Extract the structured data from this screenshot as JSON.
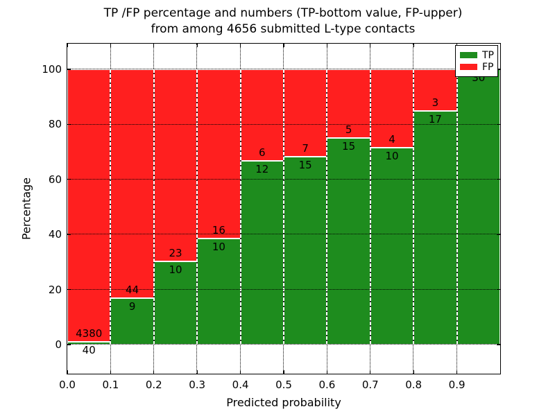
{
  "figure": {
    "title_line1": "TP /FP percentage and numbers (TP-bottom value, FP-upper)",
    "title_line2": "from among 4656 submitted L-type contacts",
    "xlabel": "Predicted probability",
    "ylabel": "Percentage"
  },
  "legend": {
    "position": "upper right",
    "items": [
      {
        "label": "TP",
        "color": "#1E8C1E"
      },
      {
        "label": "FP",
        "color": "#FF1F1F"
      }
    ]
  },
  "chart_data": {
    "type": "bar",
    "stacked": true,
    "title": "TP /FP percentage and numbers (TP-bottom value, FP-upper) from among 4656 submitted L-type contacts",
    "xlabel": "Predicted probability",
    "ylabel": "Percentage",
    "total_contacts": 4656,
    "bin_width": 0.1,
    "categories": [
      "0.0-0.1",
      "0.1-0.2",
      "0.2-0.3",
      "0.3-0.4",
      "0.4-0.5",
      "0.5-0.6",
      "0.6-0.7",
      "0.7-0.8",
      "0.8-0.9",
      "0.9-1.0"
    ],
    "series": [
      {
        "name": "TP",
        "position": "bottom",
        "color": "#1E8C1E",
        "counts": [
          40,
          9,
          10,
          10,
          12,
          15,
          15,
          10,
          17,
          30
        ]
      },
      {
        "name": "FP",
        "position": "top",
        "color": "#FF1F1F",
        "counts": [
          4380,
          44,
          23,
          16,
          6,
          7,
          5,
          4,
          3,
          0
        ]
      }
    ],
    "tp_percentages": [
      0.9,
      17.0,
      30.3,
      38.5,
      66.7,
      68.2,
      75.0,
      71.4,
      85.0,
      100.0
    ],
    "x_tick_values": [
      0.0,
      0.1,
      0.2,
      0.3,
      0.4,
      0.5,
      0.6,
      0.7,
      0.8,
      0.9
    ],
    "x_tick_labels": [
      "0.0",
      "0.1",
      "0.2",
      "0.3",
      "0.4",
      "0.5",
      "0.6",
      "0.7",
      "0.8",
      "0.9"
    ],
    "y_tick_values": [
      0,
      20,
      40,
      60,
      80,
      100
    ],
    "y_tick_labels": [
      "0",
      "20",
      "40",
      "60",
      "80",
      "100"
    ],
    "xlim": [
      0.0,
      1.0
    ],
    "ylim": [
      -11,
      110
    ],
    "grid": true,
    "legend": [
      "TP",
      "FP"
    ],
    "legend_position": "upper right"
  }
}
